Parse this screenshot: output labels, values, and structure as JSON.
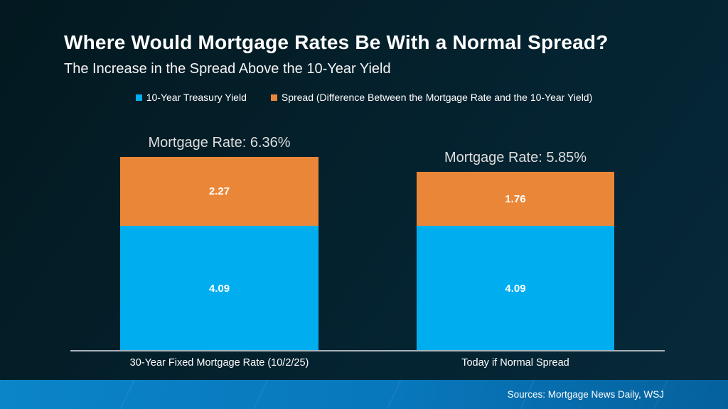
{
  "header": {
    "title": "Where Would Mortgage Rates Be With a Normal Spread?",
    "subtitle": "The Increase in the Spread Above the 10-Year Yield"
  },
  "legend": {
    "items": [
      {
        "label": "10-Year Treasury Yield",
        "color": "#00AEEF"
      },
      {
        "label": "Spread (Difference Between the Mortgage Rate and the 10-Year Yield)",
        "color": "#EA8638"
      }
    ]
  },
  "chart_data": {
    "type": "bar",
    "stacked": true,
    "categories": [
      "30-Year Fixed Mortgage Rate (10/2/25)",
      "Today if Normal Spread"
    ],
    "series": [
      {
        "name": "10-Year Treasury Yield",
        "color": "#00AEEF",
        "values": [
          4.09,
          4.09
        ]
      },
      {
        "name": "Spread (Difference Between the Mortgage Rate and the 10-Year Yield)",
        "color": "#EA8638",
        "values": [
          2.27,
          1.76
        ]
      }
    ],
    "totals": [
      6.36,
      5.85
    ],
    "total_labels": [
      "Mortgage Rate: 6.36%",
      "Mortgage Rate: 5.85%"
    ],
    "ylim": [
      0,
      7
    ],
    "grid": false,
    "legend_position": "top-center",
    "background_color": "#04202B",
    "axis_line_color": "#A9B3BA"
  },
  "footer": {
    "sources": "Sources: Mortgage News Daily, WSJ"
  }
}
